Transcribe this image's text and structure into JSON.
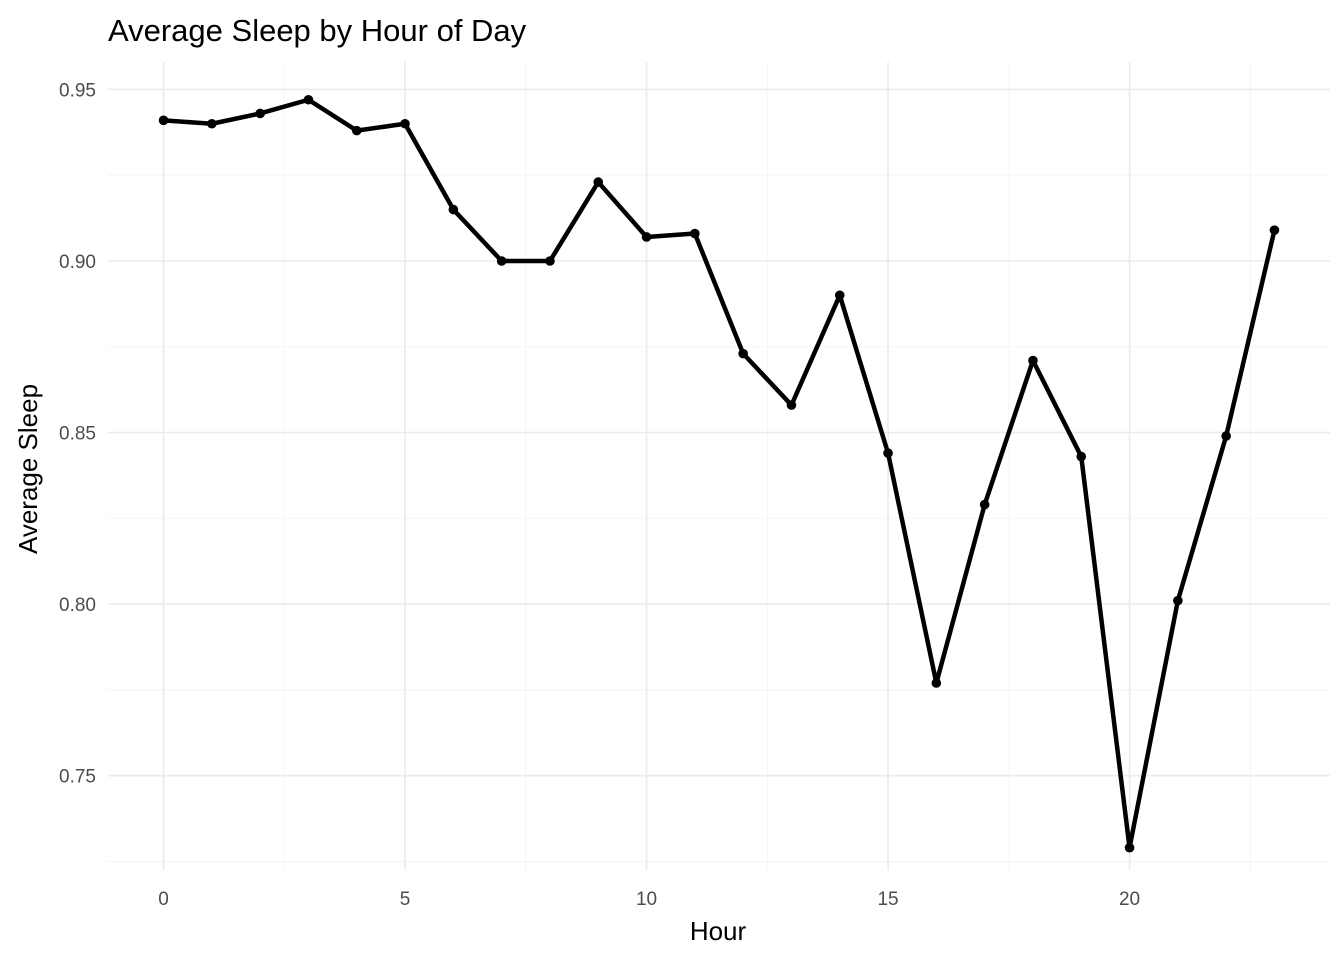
{
  "chart_data": {
    "type": "line",
    "title": "Average Sleep by Hour of Day",
    "xlabel": "Hour",
    "ylabel": "Average Sleep",
    "xlim": [
      -1.15,
      24.15
    ],
    "ylim": [
      0.7225,
      0.958
    ],
    "x_ticks": [
      0,
      5,
      10,
      15,
      20
    ],
    "x_tick_labels": [
      "0",
      "5",
      "10",
      "15",
      "20"
    ],
    "y_ticks": [
      0.75,
      0.8,
      0.85,
      0.9,
      0.95
    ],
    "y_tick_labels": [
      "0.75",
      "0.80",
      "0.85",
      "0.90",
      "0.95"
    ],
    "grid": true,
    "legend": "none",
    "line_color": "#000000",
    "x": [
      0,
      1,
      2,
      3,
      4,
      5,
      6,
      7,
      8,
      9,
      10,
      11,
      12,
      13,
      14,
      15,
      16,
      17,
      18,
      19,
      20,
      21,
      22,
      23
    ],
    "values": [
      0.941,
      0.94,
      0.943,
      0.947,
      0.938,
      0.94,
      0.915,
      0.9,
      0.9,
      0.923,
      0.907,
      0.908,
      0.873,
      0.858,
      0.89,
      0.844,
      0.777,
      0.829,
      0.871,
      0.843,
      0.729,
      0.801,
      0.849,
      0.909
    ]
  }
}
